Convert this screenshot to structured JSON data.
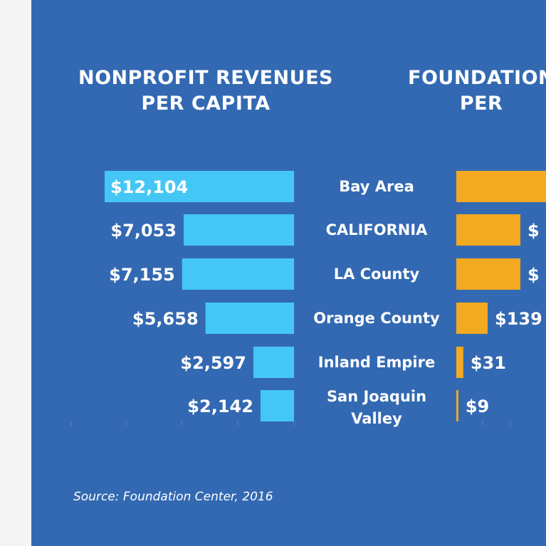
{
  "left_title": [
    "NONPROFIT REVENUES",
    "PER CAPITA"
  ],
  "right_title": [
    "FOUNDATION",
    "PER"
  ],
  "source": "Source: Foundation Center, 2016",
  "colors": {
    "background": "#3369b2",
    "left_bar": "#45c7f5",
    "right_bar": "#f3a920",
    "text": "#ffffff"
  },
  "chart_data": [
    {
      "type": "bar",
      "orientation": "horizontal",
      "title": "NONPROFIT REVENUES PER CAPITA",
      "categories": [
        "Bay Area",
        "CALIFORNIA",
        "LA County",
        "Orange County",
        "Inland Empire",
        "San Joaquin Valley"
      ],
      "values": [
        12104,
        7053,
        7155,
        5658,
        2597,
        2142
      ],
      "labels": [
        "$12,104",
        "$7,053",
        "$7,155",
        "$5,658",
        "$2,597",
        "$2,142"
      ],
      "color": "#45c7f5"
    },
    {
      "type": "bar",
      "orientation": "horizontal",
      "title": "FOUNDATION PER",
      "categories": [
        "Bay Area",
        "CALIFORNIA",
        "LA County",
        "Orange County",
        "Inland Empire",
        "San Joaquin Valley"
      ],
      "values": [
        null,
        null,
        null,
        139,
        31,
        9
      ],
      "labels": [
        "",
        "$",
        "$",
        "$139",
        "$31",
        "$9"
      ],
      "color": "#f3a920"
    }
  ],
  "category_display": [
    [
      "Bay Area"
    ],
    [
      "CALIFORNIA"
    ],
    [
      "LA County"
    ],
    [
      "Orange County"
    ],
    [
      "Inland Empire"
    ],
    [
      "San Joaquin",
      "Valley"
    ]
  ]
}
